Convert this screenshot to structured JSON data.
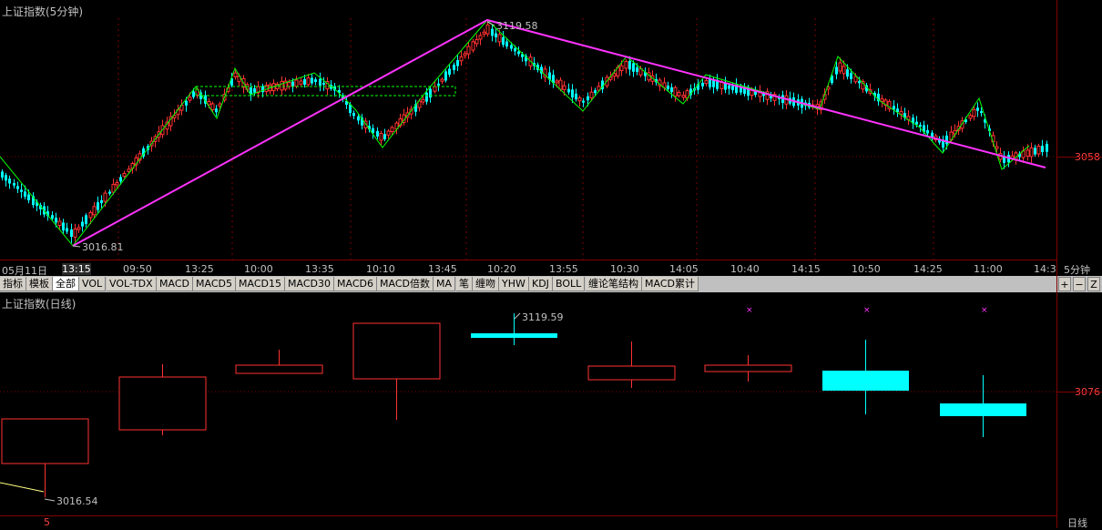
{
  "upper_panel": {
    "title": "上证指数(5分钟)",
    "high_label": "3119.58",
    "low_label": "3016.81",
    "price_tick": "3058",
    "period_label": "5分钟"
  },
  "time_axis": [
    {
      "label": "05月11日",
      "highlight": false
    },
    {
      "label": "13:15",
      "highlight": true
    },
    {
      "label": "09:50",
      "highlight": false
    },
    {
      "label": "13:25",
      "highlight": false
    },
    {
      "label": "10:00",
      "highlight": false
    },
    {
      "label": "13:35",
      "highlight": false
    },
    {
      "label": "10:10",
      "highlight": false
    },
    {
      "label": "13:45",
      "highlight": false
    },
    {
      "label": "10:20",
      "highlight": false
    },
    {
      "label": "13:55",
      "highlight": false
    },
    {
      "label": "10:30",
      "highlight": false
    },
    {
      "label": "14:05",
      "highlight": false
    },
    {
      "label": "10:40",
      "highlight": false
    },
    {
      "label": "14:15",
      "highlight": false
    },
    {
      "label": "10:50",
      "highlight": false
    },
    {
      "label": "14:25",
      "highlight": false
    },
    {
      "label": "11:00",
      "highlight": false
    },
    {
      "label": "14:3",
      "highlight": false
    }
  ],
  "tabs": [
    "指标",
    "模板",
    "全部",
    "VOL",
    "VOL-TDX",
    "MACD",
    "MACD5",
    "MACD15",
    "MACD30",
    "MACD6",
    "MACD倍数",
    "MA",
    "笔",
    "缠吻",
    "YHW",
    "KDJ",
    "BOLL",
    "缠论笔结构",
    "MACD累计"
  ],
  "active_tab": "全部",
  "controls": {
    "plus": "+",
    "minus": "−",
    "z": "Z"
  },
  "lower_panel": {
    "title": "上证指数(日线)",
    "high_label": "3119.59",
    "low_label": "3016.54",
    "price_tick": "3076",
    "bottom_left": "5",
    "period_label": "日线"
  },
  "colors": {
    "up": "#ff3232",
    "down": "#00ffff",
    "bi": "#00ff00",
    "trend": "#ff33ff",
    "box": "#00ff00",
    "grid": "#800000"
  }
}
